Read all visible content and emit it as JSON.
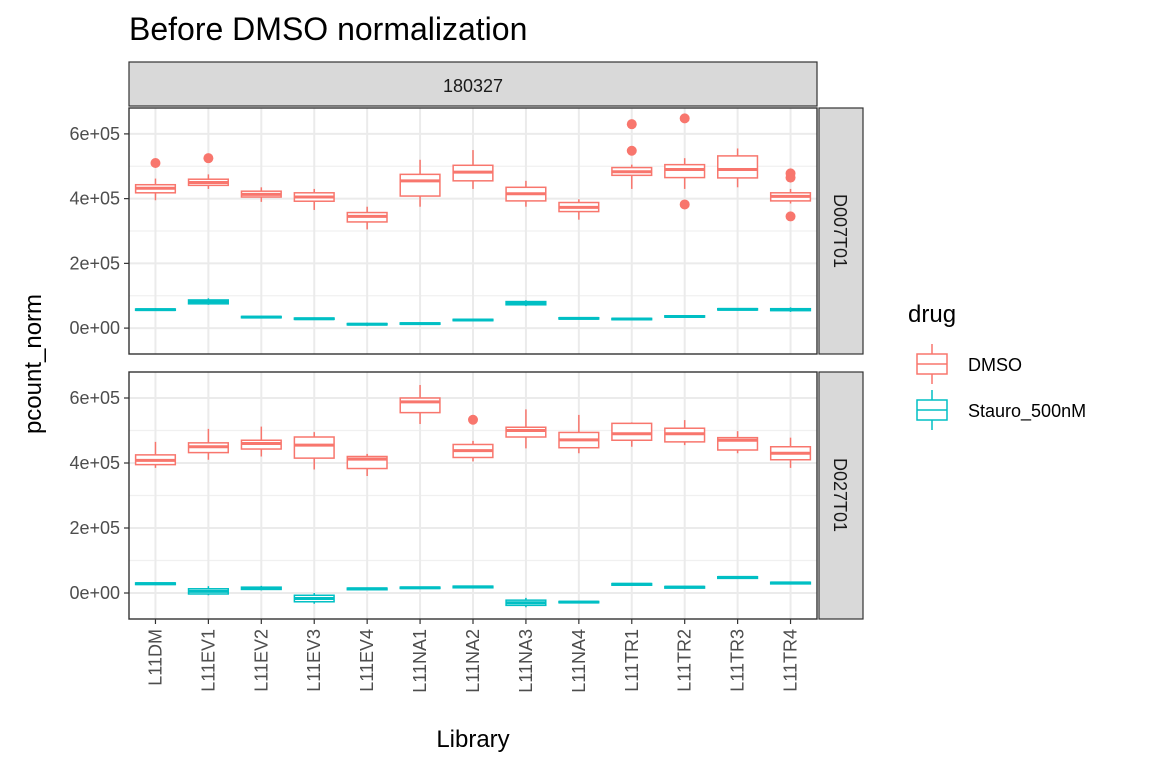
{
  "chart_data": {
    "type": "boxplot",
    "title": "Before DMSO normalization",
    "xlabel": "Library",
    "ylabel": "pcount_norm",
    "ylim": [
      -80000,
      680000
    ],
    "y_ticks": [
      0,
      200000,
      400000,
      600000
    ],
    "y_tick_labels": [
      "0e+00",
      "2e+05",
      "4e+05",
      "6e+05"
    ],
    "grid": true,
    "legend_position": "right",
    "legend": {
      "title": "drug",
      "entries": [
        {
          "name": "DMSO",
          "color": "#F8766D"
        },
        {
          "name": "Stauro_500nM",
          "color": "#00BFC4"
        }
      ]
    },
    "column_facet": "180327",
    "row_facets": [
      "D007T01",
      "D027T01"
    ],
    "categories": [
      "L11DM",
      "L11EV1",
      "L11EV2",
      "L11EV3",
      "L11EV4",
      "L11NA1",
      "L11NA2",
      "L11NA3",
      "L11NA4",
      "L11TR1",
      "L11TR2",
      "L11TR3",
      "L11TR4"
    ],
    "panels": [
      {
        "facet": "D007T01",
        "series": [
          {
            "name": "DMSO",
            "boxes": [
              {
                "min": 395000,
                "q1": 418000,
                "median": 432000,
                "q3": 443000,
                "max": 462000,
                "outliers": [
                  510000
                ]
              },
              {
                "min": 430000,
                "q1": 441000,
                "median": 450000,
                "q3": 460000,
                "max": 475000,
                "outliers": [
                  525000
                ]
              },
              {
                "min": 390000,
                "q1": 405000,
                "median": 413000,
                "q3": 423000,
                "max": 435000,
                "outliers": []
              },
              {
                "min": 365000,
                "q1": 392000,
                "median": 405000,
                "q3": 418000,
                "max": 430000,
                "outliers": []
              },
              {
                "min": 305000,
                "q1": 328000,
                "median": 345000,
                "q3": 357000,
                "max": 375000,
                "outliers": []
              },
              {
                "min": 375000,
                "q1": 408000,
                "median": 455000,
                "q3": 475000,
                "max": 520000,
                "outliers": []
              },
              {
                "min": 430000,
                "q1": 455000,
                "median": 482000,
                "q3": 503000,
                "max": 550000,
                "outliers": []
              },
              {
                "min": 375000,
                "q1": 393000,
                "median": 415000,
                "q3": 435000,
                "max": 455000,
                "outliers": []
              },
              {
                "min": 335000,
                "q1": 360000,
                "median": 373000,
                "q3": 388000,
                "max": 398000,
                "outliers": []
              },
              {
                "min": 430000,
                "q1": 472000,
                "median": 483000,
                "q3": 496000,
                "max": 505000,
                "outliers": [
                  630000,
                  548000
                ]
              },
              {
                "min": 430000,
                "q1": 465000,
                "median": 490000,
                "q3": 505000,
                "max": 525000,
                "outliers": [
                  648000,
                  382000
                ]
              },
              {
                "min": 435000,
                "q1": 464000,
                "median": 490000,
                "q3": 532000,
                "max": 555000,
                "outliers": []
              },
              {
                "min": 385000,
                "q1": 393000,
                "median": 407000,
                "q3": 418000,
                "max": 430000,
                "outliers": [
                  478000,
                  465000,
                  345000
                ]
              }
            ]
          },
          {
            "name": "Stauro_500nM",
            "boxes": [
              {
                "min": 53000,
                "q1": 55000,
                "median": 57000,
                "q3": 59000,
                "max": 62000,
                "outliers": []
              },
              {
                "min": 72000,
                "q1": 75000,
                "median": 81000,
                "q3": 87000,
                "max": 92000,
                "outliers": []
              },
              {
                "min": 30000,
                "q1": 32000,
                "median": 34000,
                "q3": 36000,
                "max": 38000,
                "outliers": []
              },
              {
                "min": 25000,
                "q1": 27000,
                "median": 29000,
                "q3": 31000,
                "max": 33000,
                "outliers": []
              },
              {
                "min": 7000,
                "q1": 10000,
                "median": 12000,
                "q3": 14000,
                "max": 17000,
                "outliers": []
              },
              {
                "min": 10000,
                "q1": 12000,
                "median": 14000,
                "q3": 16000,
                "max": 18000,
                "outliers": []
              },
              {
                "min": 21000,
                "q1": 23000,
                "median": 25000,
                "q3": 27000,
                "max": 29000,
                "outliers": []
              },
              {
                "min": 68000,
                "q1": 72000,
                "median": 77000,
                "q3": 82000,
                "max": 86000,
                "outliers": []
              },
              {
                "min": 26000,
                "q1": 28000,
                "median": 30000,
                "q3": 32000,
                "max": 34000,
                "outliers": []
              },
              {
                "min": 24000,
                "q1": 26000,
                "median": 28000,
                "q3": 30000,
                "max": 32000,
                "outliers": []
              },
              {
                "min": 32000,
                "q1": 34000,
                "median": 36000,
                "q3": 38000,
                "max": 40000,
                "outliers": []
              },
              {
                "min": 54000,
                "q1": 56000,
                "median": 58000,
                "q3": 60000,
                "max": 62000,
                "outliers": []
              },
              {
                "min": 50000,
                "q1": 54000,
                "median": 57000,
                "q3": 60000,
                "max": 64000,
                "outliers": []
              }
            ]
          }
        ]
      },
      {
        "facet": "D027T01",
        "series": [
          {
            "name": "DMSO",
            "boxes": [
              {
                "min": 385000,
                "q1": 395000,
                "median": 408000,
                "q3": 425000,
                "max": 465000,
                "outliers": []
              },
              {
                "min": 410000,
                "q1": 432000,
                "median": 450000,
                "q3": 462000,
                "max": 505000,
                "outliers": []
              },
              {
                "min": 420000,
                "q1": 443000,
                "median": 460000,
                "q3": 470000,
                "max": 512000,
                "outliers": []
              },
              {
                "min": 380000,
                "q1": 415000,
                "median": 455000,
                "q3": 480000,
                "max": 495000,
                "outliers": []
              },
              {
                "min": 360000,
                "q1": 383000,
                "median": 412000,
                "q3": 420000,
                "max": 428000,
                "outliers": []
              },
              {
                "min": 520000,
                "q1": 555000,
                "median": 588000,
                "q3": 600000,
                "max": 640000,
                "outliers": []
              },
              {
                "min": 405000,
                "q1": 417000,
                "median": 438000,
                "q3": 457000,
                "max": 468000,
                "outliers": [
                  533000
                ]
              },
              {
                "min": 445000,
                "q1": 480000,
                "median": 500000,
                "q3": 510000,
                "max": 565000,
                "outliers": []
              },
              {
                "min": 430000,
                "q1": 447000,
                "median": 471000,
                "q3": 494000,
                "max": 548000,
                "outliers": []
              },
              {
                "min": 450000,
                "q1": 470000,
                "median": 490000,
                "q3": 522000,
                "max": 525000,
                "outliers": []
              },
              {
                "min": 455000,
                "q1": 465000,
                "median": 490000,
                "q3": 507000,
                "max": 532000,
                "outliers": []
              },
              {
                "min": 430000,
                "q1": 440000,
                "median": 470000,
                "q3": 478000,
                "max": 498000,
                "outliers": []
              },
              {
                "min": 385000,
                "q1": 410000,
                "median": 430000,
                "q3": 450000,
                "max": 478000,
                "outliers": []
              }
            ]
          },
          {
            "name": "Stauro_500nM",
            "boxes": [
              {
                "min": 24000,
                "q1": 26000,
                "median": 29000,
                "q3": 31000,
                "max": 33000,
                "outliers": []
              },
              {
                "min": -7000,
                "q1": -3000,
                "median": 5000,
                "q3": 13000,
                "max": 21000,
                "outliers": []
              },
              {
                "min": 8000,
                "q1": 11000,
                "median": 15000,
                "q3": 18000,
                "max": 22000,
                "outliers": []
              },
              {
                "min": -33000,
                "q1": -27000,
                "median": -17000,
                "q3": -7000,
                "max": 0,
                "outliers": []
              },
              {
                "min": 8000,
                "q1": 10000,
                "median": 13000,
                "q3": 15000,
                "max": 17000,
                "outliers": []
              },
              {
                "min": 12000,
                "q1": 14000,
                "median": 16000,
                "q3": 18000,
                "max": 20000,
                "outliers": []
              },
              {
                "min": 14000,
                "q1": 16000,
                "median": 19000,
                "q3": 21000,
                "max": 23000,
                "outliers": []
              },
              {
                "min": -44000,
                "q1": -38000,
                "median": -30000,
                "q3": -22000,
                "max": -15000,
                "outliers": []
              },
              {
                "min": -31000,
                "q1": -30000,
                "median": -28000,
                "q3": -26000,
                "max": -25000,
                "outliers": []
              },
              {
                "min": 22000,
                "q1": 24000,
                "median": 27000,
                "q3": 29000,
                "max": 31000,
                "outliers": []
              },
              {
                "min": 13000,
                "q1": 15000,
                "median": 18000,
                "q3": 20000,
                "max": 22000,
                "outliers": []
              },
              {
                "min": 43000,
                "q1": 45000,
                "median": 48000,
                "q3": 50000,
                "max": 52000,
                "outliers": []
              },
              {
                "min": 26000,
                "q1": 28000,
                "median": 31000,
                "q3": 33000,
                "max": 35000,
                "outliers": []
              }
            ]
          }
        ]
      }
    ]
  }
}
